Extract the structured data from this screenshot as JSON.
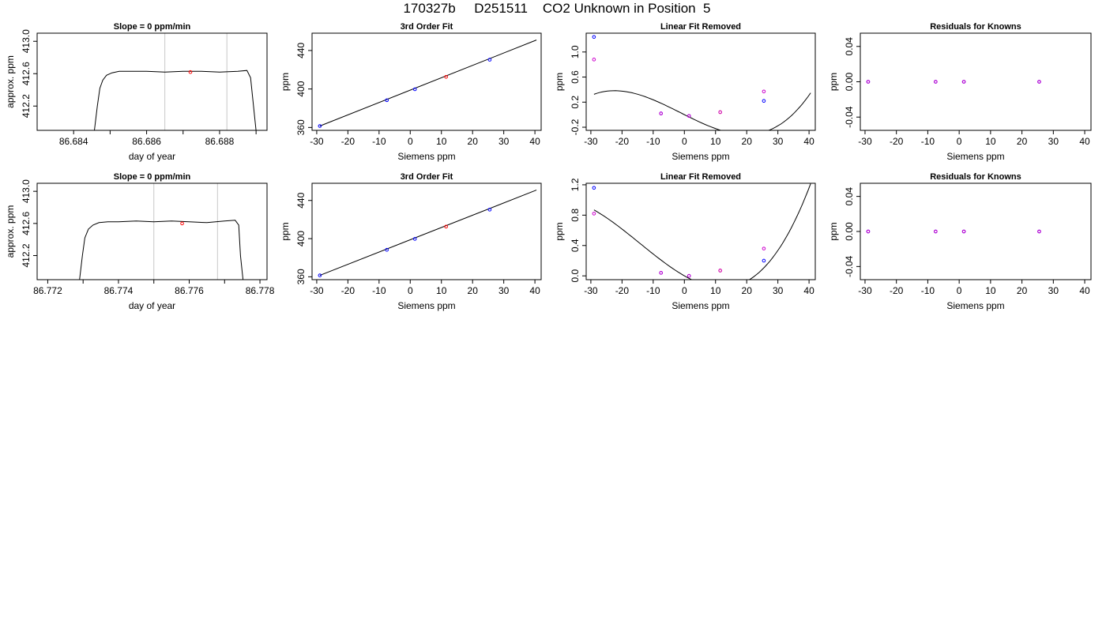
{
  "title": "170327b     D251511    CO2 Unknown in Position  5",
  "chart_data": [
    {
      "panel": "row1-timeseries",
      "type": "line",
      "title": "Slope =  0  ppm/min",
      "xlabel": "day of year",
      "ylabel": "approx. ppm",
      "xlim": [
        86.683,
        86.6893
      ],
      "ylim": [
        411.9,
        413.1
      ],
      "x_ticks": [
        "86.684",
        "86.686",
        "86.688"
      ],
      "x_ticks_unlabeled": [
        86.685,
        86.687,
        86.689
      ],
      "y_ticks": [
        "412.2",
        "412.6",
        "413.0"
      ],
      "vlines": [
        86.6865,
        86.6882
      ],
      "series": [
        {
          "x": [
            86.68457,
            86.68465,
            86.68472,
            86.6848,
            86.6849,
            86.68505,
            86.68525,
            86.6855,
            86.686,
            86.6865,
            86.687,
            86.6875,
            86.688,
            86.6885,
            86.68875,
            86.68885,
            86.68893,
            86.689
          ],
          "y": [
            411.9,
            412.2,
            412.42,
            412.52,
            412.58,
            412.61,
            412.63,
            412.63,
            412.63,
            412.62,
            412.63,
            412.63,
            412.62,
            412.63,
            412.64,
            412.55,
            412.2,
            411.9
          ]
        }
      ],
      "marker": {
        "x": 86.6872,
        "y": 412.62,
        "color": "#ff0000"
      }
    },
    {
      "panel": "row1-fit",
      "type": "scatter",
      "title": "3rd Order Fit",
      "xlabel": "Siemens ppm",
      "ylabel": "ppm",
      "xlim": [
        -31.5,
        42.0
      ],
      "ylim": [
        357.0,
        458.0
      ],
      "x_ticks": [
        "-30",
        "-20",
        "-10",
        "0",
        "10",
        "20",
        "30",
        "40"
      ],
      "y_ticks": [
        "360",
        "400",
        "440"
      ],
      "fit_line": {
        "x": [
          -29.0,
          40.5
        ],
        "y": [
          361.5,
          450.9
        ]
      },
      "points": [
        {
          "x": -29.0,
          "y": 361.5,
          "color": "#0000ff"
        },
        {
          "x": -7.5,
          "y": 388.3,
          "color": "#0000ff"
        },
        {
          "x": 1.5,
          "y": 399.7,
          "color": "#0000ff"
        },
        {
          "x": 11.5,
          "y": 412.6,
          "color": "#ff0000"
        },
        {
          "x": 25.5,
          "y": 430.4,
          "color": "#0000ff"
        }
      ]
    },
    {
      "panel": "row1-linear-removed",
      "type": "scatter",
      "title": "Linear Fit Removed",
      "xlabel": "Siemens ppm",
      "ylabel": "ppm",
      "xlim": [
        -31.5,
        42.0
      ],
      "ylim": [
        -0.25,
        1.3
      ],
      "x_ticks": [
        "-30",
        "-20",
        "-10",
        "0",
        "10",
        "20",
        "30",
        "40"
      ],
      "y_ticks": [
        "-0.2",
        "0.2",
        "0.6",
        "1.0"
      ],
      "curve": {
        "coeffs": [
          0.0007,
          -0.0248,
          7e-05,
          1.86e-05
        ],
        "range": [
          -29.0,
          40.5
        ]
      },
      "points": [
        {
          "x": -29.0,
          "y": 1.24,
          "color": "#0000ff"
        },
        {
          "x": -29.0,
          "y": 0.88,
          "color": "#cc00cc"
        },
        {
          "x": -7.5,
          "y": 0.02,
          "color": "#0000ff"
        },
        {
          "x": -7.5,
          "y": 0.02,
          "color": "#cc00cc"
        },
        {
          "x": 1.5,
          "y": -0.02,
          "color": "#0000ff"
        },
        {
          "x": 1.5,
          "y": -0.02,
          "color": "#cc00cc"
        },
        {
          "x": 11.5,
          "y": 0.04,
          "color": "#ff8800"
        },
        {
          "x": 11.5,
          "y": 0.04,
          "color": "#cc00cc"
        },
        {
          "x": 25.5,
          "y": 0.22,
          "color": "#0000ff"
        },
        {
          "x": 25.5,
          "y": 0.37,
          "color": "#cc00cc"
        }
      ]
    },
    {
      "panel": "row1-residuals",
      "type": "scatter",
      "title": "Residuals for Knowns",
      "xlabel": "Siemens ppm",
      "ylabel": "ppm",
      "xlim": [
        -31.5,
        42.0
      ],
      "ylim": [
        -0.055,
        0.055
      ],
      "x_ticks": [
        "-30",
        "-20",
        "-10",
        "0",
        "10",
        "20",
        "30",
        "40"
      ],
      "y_ticks": [
        "-0.04",
        "0.00",
        "0.04"
      ],
      "points": [
        {
          "x": -29.0,
          "y": 0.0,
          "color": "#0000ff"
        },
        {
          "x": -7.5,
          "y": 0.0,
          "color": "#0000ff"
        },
        {
          "x": 1.5,
          "y": 0.0,
          "color": "#0000ff"
        },
        {
          "x": 25.5,
          "y": 0.0,
          "color": "#0000ff"
        },
        {
          "x": -29.0,
          "y": 0.0,
          "color": "#cc00cc"
        },
        {
          "x": -7.5,
          "y": 0.0,
          "color": "#cc00cc"
        },
        {
          "x": 1.5,
          "y": 0.0,
          "color": "#cc00cc"
        },
        {
          "x": 25.5,
          "y": 0.0,
          "color": "#cc00cc"
        }
      ]
    },
    {
      "panel": "row2-timeseries",
      "type": "line",
      "title": "Slope =  0  ppm/min",
      "xlabel": "day of year",
      "ylabel": "approx. ppm",
      "xlim": [
        86.7717,
        86.7782
      ],
      "ylim": [
        411.9,
        413.1
      ],
      "x_ticks": [
        "86.772",
        "86.774",
        "86.776",
        "86.778"
      ],
      "x_ticks_unlabeled": [
        86.773,
        86.775,
        86.777
      ],
      "y_ticks": [
        "412.2",
        "412.6",
        "413.0"
      ],
      "vlines": [
        86.775,
        86.7768
      ],
      "series": [
        {
          "x": [
            86.7729,
            86.77298,
            86.77305,
            86.77315,
            86.77328,
            86.77345,
            86.7737,
            86.774,
            86.7745,
            86.775,
            86.7755,
            86.776,
            86.7765,
            86.777,
            86.7773,
            86.7774,
            86.77745,
            86.77752
          ],
          "y": [
            411.9,
            412.2,
            412.42,
            412.53,
            412.58,
            412.61,
            412.62,
            412.62,
            412.63,
            412.62,
            412.63,
            412.62,
            412.61,
            412.63,
            412.64,
            412.58,
            412.2,
            411.9
          ]
        }
      ],
      "marker": {
        "x": 86.7758,
        "y": 412.6,
        "color": "#ff0000"
      }
    },
    {
      "panel": "row2-fit",
      "type": "scatter",
      "title": "3rd Order Fit",
      "xlabel": "Siemens ppm",
      "ylabel": "ppm",
      "xlim": [
        -31.5,
        42.0
      ],
      "ylim": [
        357.0,
        458.0
      ],
      "x_ticks": [
        "-30",
        "-20",
        "-10",
        "0",
        "10",
        "20",
        "30",
        "40"
      ],
      "y_ticks": [
        "360",
        "400",
        "440"
      ],
      "fit_line": {
        "x": [
          -29.0,
          40.5
        ],
        "y": [
          361.5,
          450.9
        ]
      },
      "points": [
        {
          "x": -29.0,
          "y": 361.5,
          "color": "#0000ff"
        },
        {
          "x": -7.5,
          "y": 388.3,
          "color": "#0000ff"
        },
        {
          "x": 1.5,
          "y": 399.7,
          "color": "#0000ff"
        },
        {
          "x": 11.5,
          "y": 412.6,
          "color": "#ff0000"
        },
        {
          "x": 25.5,
          "y": 430.4,
          "color": "#0000ff"
        }
      ]
    },
    {
      "panel": "row2-linear-removed",
      "type": "scatter",
      "title": "Linear Fit Removed",
      "xlabel": "Siemens ppm",
      "ylabel": "ppm",
      "xlim": [
        -31.5,
        42.0
      ],
      "ylim": [
        -0.05,
        1.22
      ],
      "x_ticks": [
        "-30",
        "-20",
        "-10",
        "0",
        "10",
        "20",
        "30",
        "40"
      ],
      "y_ticks": [
        "0.0",
        "0.4",
        "0.8",
        "1.2"
      ],
      "curve": {
        "coeffs": [
          0.0008,
          -0.0235,
          0.00068,
          1.58e-05
        ],
        "range": [
          -29.0,
          40.5
        ]
      },
      "points": [
        {
          "x": -29.0,
          "y": 1.16,
          "color": "#0000ff"
        },
        {
          "x": -29.0,
          "y": 0.82,
          "color": "#cc00cc"
        },
        {
          "x": -7.5,
          "y": 0.04,
          "color": "#0000ff"
        },
        {
          "x": -7.5,
          "y": 0.04,
          "color": "#cc00cc"
        },
        {
          "x": 1.5,
          "y": 0.0,
          "color": "#0000ff"
        },
        {
          "x": 1.5,
          "y": 0.0,
          "color": "#cc00cc"
        },
        {
          "x": 11.5,
          "y": 0.07,
          "color": "#ff8800"
        },
        {
          "x": 11.5,
          "y": 0.07,
          "color": "#cc00cc"
        },
        {
          "x": 25.5,
          "y": 0.2,
          "color": "#0000ff"
        },
        {
          "x": 25.5,
          "y": 0.36,
          "color": "#cc00cc"
        }
      ]
    },
    {
      "panel": "row2-residuals",
      "type": "scatter",
      "title": "Residuals for Knowns",
      "xlabel": "Siemens ppm",
      "ylabel": "ppm",
      "xlim": [
        -31.5,
        42.0
      ],
      "ylim": [
        -0.055,
        0.055
      ],
      "x_ticks": [
        "-30",
        "-20",
        "-10",
        "0",
        "10",
        "20",
        "30",
        "40"
      ],
      "y_ticks": [
        "-0.04",
        "0.00",
        "0.04"
      ],
      "points": [
        {
          "x": -29.0,
          "y": 0.0,
          "color": "#0000ff"
        },
        {
          "x": -7.5,
          "y": 0.0,
          "color": "#0000ff"
        },
        {
          "x": 1.5,
          "y": 0.0,
          "color": "#0000ff"
        },
        {
          "x": 25.5,
          "y": 0.0,
          "color": "#0000ff"
        },
        {
          "x": -29.0,
          "y": 0.0,
          "color": "#cc00cc"
        },
        {
          "x": -7.5,
          "y": 0.0,
          "color": "#cc00cc"
        },
        {
          "x": 1.5,
          "y": 0.0,
          "color": "#cc00cc"
        },
        {
          "x": 25.5,
          "y": 0.0,
          "color": "#cc00cc"
        }
      ]
    }
  ]
}
